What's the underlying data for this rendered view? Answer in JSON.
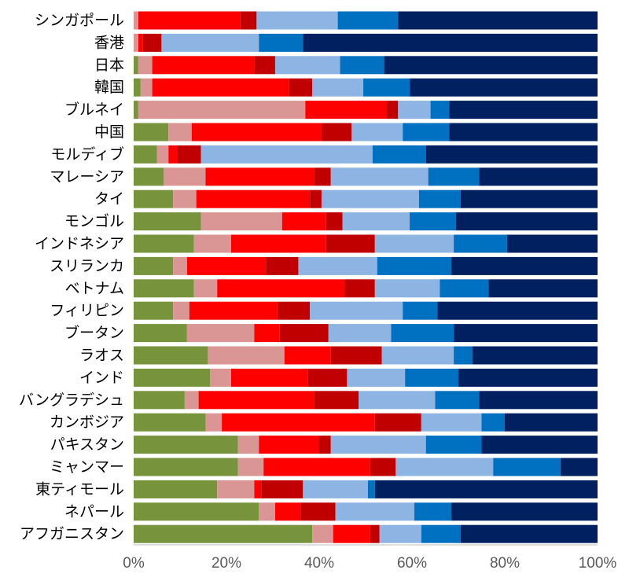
{
  "chart_data": {
    "type": "bar",
    "orientation": "horizontal",
    "stacked": "percent",
    "xlim": [
      0,
      100
    ],
    "x_ticks": [
      "0%",
      "20%",
      "40%",
      "60%",
      "80%",
      "100%"
    ],
    "grid": false,
    "legend": "none",
    "categories": [
      "シンガポール",
      "香港",
      "日本",
      "韓国",
      "ブルネイ",
      "中国",
      "モルディブ",
      "マレーシア",
      "タイ",
      "モンゴル",
      "インドネシア",
      "スリランカ",
      "ベトナム",
      "フィリピン",
      "ブータン",
      "ラオス",
      "インド",
      "バングラデシュ",
      "カンボジア",
      "パキスタン",
      "ミャンマー",
      "東ティモール",
      "ネパール",
      "アフガニスタン"
    ],
    "series": [
      {
        "color": "#77933C",
        "values": [
          0,
          0,
          1,
          1.5,
          1,
          7.5,
          5,
          6.5,
          8.5,
          14.5,
          13,
          8.5,
          13,
          8.5,
          11.5,
          16,
          16.5,
          11,
          15.5,
          22.5,
          22.5,
          18,
          27,
          38.5
        ]
      },
      {
        "color": "#DA9694",
        "values": [
          1,
          1,
          3,
          2.5,
          36,
          5,
          2.5,
          9,
          5,
          17.5,
          8,
          3,
          5,
          3.5,
          14.5,
          16.5,
          4.5,
          3,
          3.5,
          4.5,
          5.5,
          8,
          3.5,
          4.5
        ]
      },
      {
        "color": "#FF0000",
        "values": [
          22,
          1,
          22,
          29.5,
          17.5,
          28,
          2,
          23.5,
          24.5,
          9.5,
          20.5,
          17,
          27.5,
          19,
          5.5,
          10,
          16.5,
          25,
          33,
          13,
          23,
          1.5,
          5.5,
          8
        ]
      },
      {
        "color": "#C00000",
        "values": [
          3.5,
          4,
          4.5,
          5,
          2.5,
          6.5,
          5,
          3.5,
          2.5,
          3.5,
          10.5,
          7,
          6.5,
          7,
          10.5,
          11,
          8.5,
          9.5,
          10,
          2.5,
          5.5,
          9,
          7.5,
          2
        ]
      },
      {
        "color": "#8DB4E2",
        "values": [
          17.5,
          21,
          14,
          11,
          7,
          11,
          37,
          21,
          21,
          14.5,
          17,
          17,
          14,
          20,
          13.5,
          15.5,
          12.5,
          16.5,
          13,
          20.5,
          21,
          14,
          17,
          9
        ]
      },
      {
        "color": "#0070C0",
        "values": [
          13,
          9.5,
          9.5,
          10,
          4,
          10,
          11.5,
          11,
          9,
          10,
          11.5,
          16,
          10.5,
          7.5,
          13.5,
          4,
          11.5,
          9.5,
          5,
          12,
          14.5,
          1.5,
          8,
          8.5
        ]
      },
      {
        "color": "#002060",
        "values": [
          43,
          63.5,
          46,
          40.5,
          32,
          32,
          37,
          25.5,
          29.5,
          30.5,
          19.5,
          31.5,
          23.5,
          34.5,
          31,
          27,
          30,
          25.5,
          20,
          25,
          8,
          48,
          31.5,
          29.5
        ]
      }
    ]
  }
}
